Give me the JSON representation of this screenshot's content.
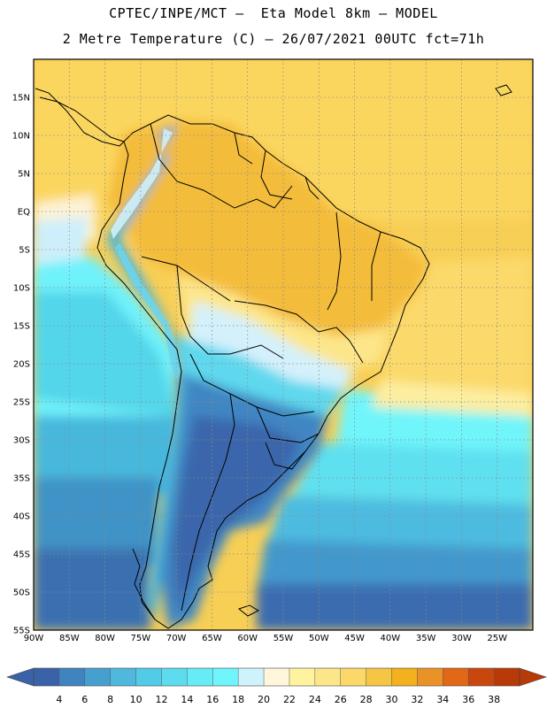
{
  "header": {
    "line1": "CPTEC/INPE/MCT –  Eta Model 8km – MODEL",
    "line2": "2 Metre Temperature (C) – 26/07/2021 00UTC fct=71h"
  },
  "map": {
    "lon_range": [
      -90,
      -20
    ],
    "lat_range": [
      -55,
      20
    ],
    "lat_ticks": [
      "15N",
      "10N",
      "5N",
      "EQ",
      "5S",
      "10S",
      "15S",
      "20S",
      "25S",
      "30S",
      "35S",
      "40S",
      "45S",
      "50S",
      "55S"
    ],
    "lon_ticks": [
      "90W",
      "85W",
      "80W",
      "75W",
      "70W",
      "65W",
      "60W",
      "55W",
      "50W",
      "45W",
      "40W",
      "35W",
      "30W",
      "25W"
    ],
    "grid": true
  },
  "colorbar": {
    "labels": [
      "4",
      "6",
      "8",
      "10",
      "12",
      "14",
      "16",
      "18",
      "20",
      "22",
      "24",
      "26",
      "28",
      "30",
      "32",
      "34",
      "36",
      "38"
    ],
    "colors": [
      "#3a62a8",
      "#3f83bf",
      "#46a0cf",
      "#50b8dd",
      "#52cce6",
      "#5cdcee",
      "#66ecf6",
      "#6ff5fb",
      "#cff3fd",
      "#fff6dc",
      "#fff3a0",
      "#fde68a",
      "#fbd869",
      "#f5c544",
      "#f2b11d",
      "#ea9128",
      "#e06816",
      "#c9470d",
      "#b83a08"
    ]
  }
}
